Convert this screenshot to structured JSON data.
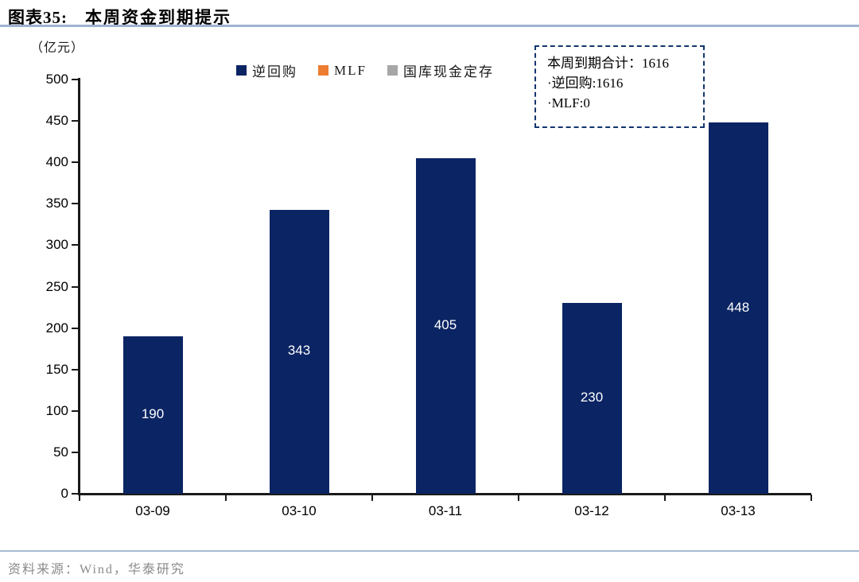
{
  "figure": {
    "label": "图表35:",
    "title": "本周资金到期提示"
  },
  "chart": {
    "unit": "（亿元）"
  },
  "legend": [
    {
      "name": "reverse-repo",
      "label": "逆回购",
      "color": "#0b2463"
    },
    {
      "name": "mlf",
      "label": "MLF",
      "color": "#ed7d31"
    },
    {
      "name": "treasury-cash-deposit",
      "label": "国库现金定存",
      "color": "#a6a6a6"
    }
  ],
  "annotation": {
    "border_color": "#14356e",
    "lines": [
      "本周到期合计：1616",
      "·逆回购:1616",
      "·MLF:0"
    ]
  },
  "chart_data": {
    "type": "bar",
    "title": "本周资金到期提示",
    "xlabel": "",
    "ylabel": "（亿元）",
    "categories": [
      "03-09",
      "03-10",
      "03-11",
      "03-12",
      "03-13"
    ],
    "series": [
      {
        "name": "逆回购",
        "color": "#0b2463",
        "values": [
          190,
          343,
          405,
          230,
          448
        ]
      },
      {
        "name": "MLF",
        "color": "#ed7d31",
        "values": [
          0,
          0,
          0,
          0,
          0
        ]
      },
      {
        "name": "国库现金定存",
        "color": "#a6a6a6",
        "values": [
          0,
          0,
          0,
          0,
          0
        ]
      }
    ],
    "bar_labels": [
      190,
      343,
      405,
      230,
      448
    ],
    "ylim": [
      0,
      500
    ],
    "yticks": [
      0,
      50,
      100,
      150,
      200,
      250,
      300,
      350,
      400,
      450,
      500
    ],
    "grid": false,
    "legend_position": "top",
    "axis_color": "#1a1a1a",
    "label_color": "#ffffff"
  },
  "source": {
    "text": "资料来源：Wind，华泰研究"
  }
}
